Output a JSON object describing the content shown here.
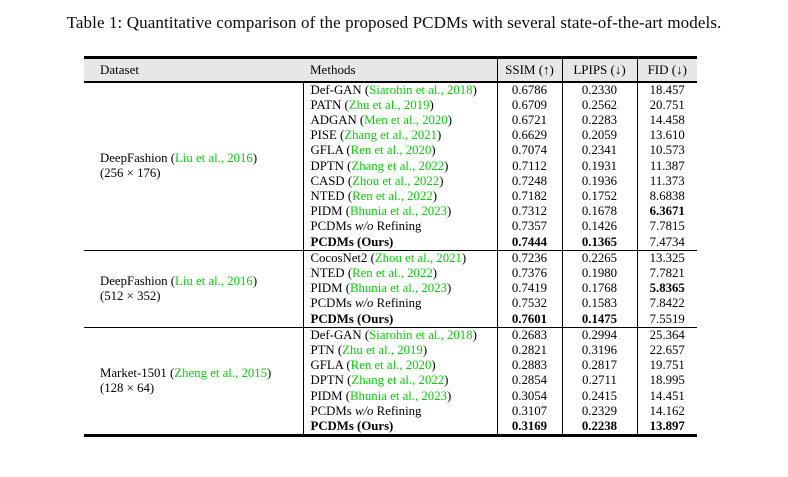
{
  "title": "Table 1: Quantitative comparison of the proposed PCDMs with several state-of-the-art models.",
  "colors": {
    "citation_green": "#00D300",
    "header_bg": "#E7E7E7",
    "rule_black": "#000000"
  },
  "table": {
    "columns": [
      {
        "key": "dataset",
        "label": "Dataset"
      },
      {
        "key": "methods",
        "label": "Methods"
      },
      {
        "key": "ssim",
        "label": "SSIM (↑)"
      },
      {
        "key": "lpips",
        "label": "LPIPS (↓)"
      },
      {
        "key": "fid",
        "label": "FID (↓)"
      }
    ],
    "groups": [
      {
        "dataset": {
          "name": "DeepFashion",
          "cite": "Liu et al., 2016",
          "size": "(256 × 176)"
        },
        "rows": [
          {
            "method": {
              "text": "Def-GAN",
              "cite": "Siarohin et al., 2018"
            },
            "ssim": "0.6786",
            "lpips": "0.2330",
            "fid": "18.457"
          },
          {
            "method": {
              "text": "PATN",
              "cite": "Zhu et al., 2019"
            },
            "ssim": "0.6709",
            "lpips": "0.2562",
            "fid": "20.751"
          },
          {
            "method": {
              "text": "ADGAN",
              "cite": "Men et al., 2020"
            },
            "ssim": "0.6721",
            "lpips": "0.2283",
            "fid": "14.458"
          },
          {
            "method": {
              "text": "PISE",
              "cite": "Zhang et al., 2021"
            },
            "ssim": "0.6629",
            "lpips": "0.2059",
            "fid": "13.610"
          },
          {
            "method": {
              "text": "GFLA",
              "cite": "Ren et al., 2020"
            },
            "ssim": "0.7074",
            "lpips": "0.2341",
            "fid": "10.573"
          },
          {
            "method": {
              "text": "DPTN",
              "cite": "Zhang et al., 2022"
            },
            "ssim": "0.7112",
            "lpips": "0.1931",
            "fid": "11.387"
          },
          {
            "method": {
              "text": "CASD",
              "cite": "Zhou et al., 2022"
            },
            "ssim": "0.7248",
            "lpips": "0.1936",
            "fid": "11.373"
          },
          {
            "method": {
              "text": "NTED",
              "cite": "Ren et al., 2022"
            },
            "ssim": "0.7182",
            "lpips": "0.1752",
            "fid": "8.6838"
          },
          {
            "method": {
              "text": "PIDM",
              "cite": "Bhunia et al., 2023"
            },
            "ssim": "0.7312",
            "lpips": "0.1678",
            "fid": "6.3671",
            "bold": [
              "fid"
            ]
          },
          {
            "method": {
              "pre": "PCDMs ",
              "it": "w/o",
              "post": " Refining"
            },
            "ssim": "0.7357",
            "lpips": "0.1426",
            "fid": "7.7815"
          },
          {
            "method": {
              "bold": "PCDMs (Ours)"
            },
            "ssim": "0.7444",
            "lpips": "0.1365",
            "fid": "7.4734",
            "bold": [
              "ssim",
              "lpips"
            ]
          }
        ]
      },
      {
        "dataset": {
          "name": "DeepFashion",
          "cite": "Liu et al., 2016",
          "size": "(512 × 352)"
        },
        "rows": [
          {
            "method": {
              "text": "CocosNet2",
              "cite": "Zhou et al., 2021"
            },
            "ssim": "0.7236",
            "lpips": "0.2265",
            "fid": "13.325"
          },
          {
            "method": {
              "text": "NTED",
              "cite": "Ren et al., 2022"
            },
            "ssim": "0.7376",
            "lpips": "0.1980",
            "fid": "7.7821"
          },
          {
            "method": {
              "text": "PIDM",
              "cite": "Bhunia et al., 2023"
            },
            "ssim": "0.7419",
            "lpips": "0.1768",
            "fid": "5.8365",
            "bold": [
              "fid"
            ]
          },
          {
            "method": {
              "pre": "PCDMs ",
              "it": "w/o",
              "post": " Refining"
            },
            "ssim": "0.7532",
            "lpips": "0.1583",
            "fid": "7.8422"
          },
          {
            "method": {
              "bold": "PCDMs (Ours)"
            },
            "ssim": "0.7601",
            "lpips": "0.1475",
            "fid": "7.5519",
            "bold": [
              "ssim",
              "lpips"
            ]
          }
        ]
      },
      {
        "dataset": {
          "name": "Market-1501",
          "cite": "Zheng et al., 2015",
          "size": "(128 × 64)"
        },
        "rows": [
          {
            "method": {
              "text": "Def-GAN",
              "cite": "Siarohin et al., 2018"
            },
            "ssim": "0.2683",
            "lpips": "0.2994",
            "fid": "25.364"
          },
          {
            "method": {
              "text": "PTN",
              "cite": "Zhu et al., 2019"
            },
            "ssim": "0.2821",
            "lpips": "0.3196",
            "fid": "22.657"
          },
          {
            "method": {
              "text": "GFLA",
              "cite": "Ren et al., 2020"
            },
            "ssim": "0.2883",
            "lpips": "0.2817",
            "fid": "19.751"
          },
          {
            "method": {
              "text": "DPTN",
              "cite": "Zhang et al., 2022"
            },
            "ssim": "0.2854",
            "lpips": "0.2711",
            "fid": "18.995"
          },
          {
            "method": {
              "text": "PIDM",
              "cite": "Bhunia et al., 2023"
            },
            "ssim": "0.3054",
            "lpips": "0.2415",
            "fid": "14.451"
          },
          {
            "method": {
              "pre": "PCDMs ",
              "it": "w/o",
              "post": " Refining"
            },
            "ssim": "0.3107",
            "lpips": "0.2329",
            "fid": "14.162"
          },
          {
            "method": {
              "bold": "PCDMs (Ours)"
            },
            "ssim": "0.3169",
            "lpips": "0.2238",
            "fid": "13.897",
            "bold": [
              "ssim",
              "lpips",
              "fid"
            ]
          }
        ]
      }
    ]
  }
}
